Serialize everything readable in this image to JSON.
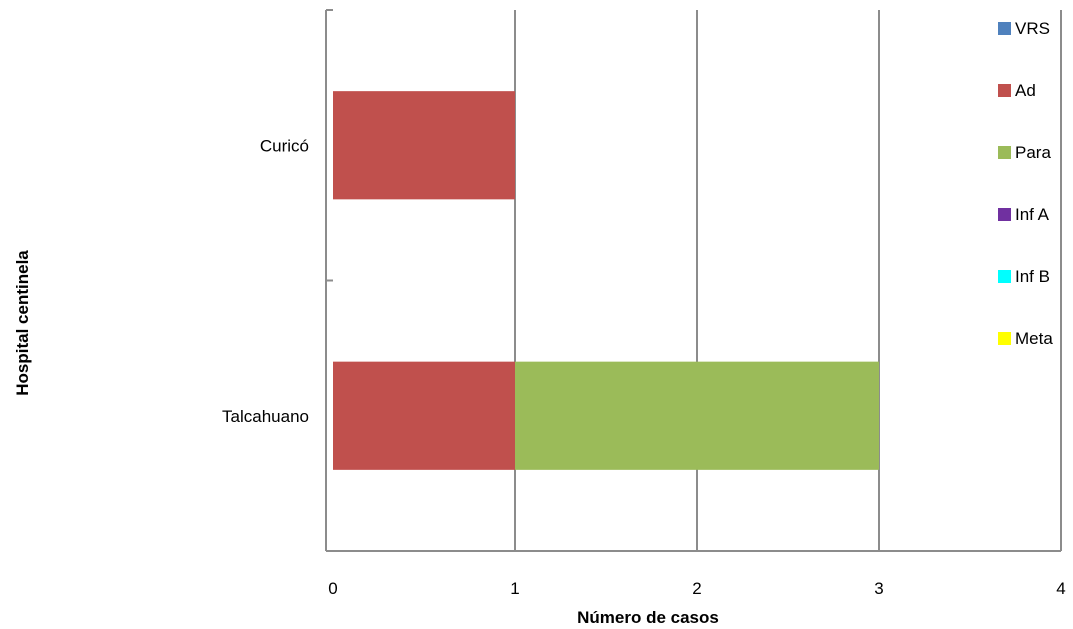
{
  "chart_data": {
    "type": "bar",
    "orientation": "horizontal",
    "stacked": true,
    "title": "",
    "xlabel": "Número de casos",
    "ylabel": "Hospital centinela",
    "xlim": [
      0,
      4
    ],
    "x_ticks": [
      "0",
      "1",
      "2",
      "3",
      "4"
    ],
    "categories": [
      "Curicó",
      "Talcahuano"
    ],
    "series": [
      {
        "name": "VRS",
        "color": "#4f81bd",
        "values": [
          0,
          0
        ]
      },
      {
        "name": "Ad",
        "color": "#c0504d",
        "values": [
          1,
          1
        ]
      },
      {
        "name": "Para",
        "color": "#9bbb59",
        "values": [
          0,
          2
        ]
      },
      {
        "name": "Inf A",
        "color": "#7030a0",
        "values": [
          0,
          0
        ]
      },
      {
        "name": "Inf B",
        "color": "#00ffff",
        "values": [
          0,
          0
        ]
      },
      {
        "name": "Meta",
        "color": "#ffff00",
        "values": [
          0,
          0
        ]
      }
    ],
    "grid": true,
    "legend_position": "right"
  }
}
